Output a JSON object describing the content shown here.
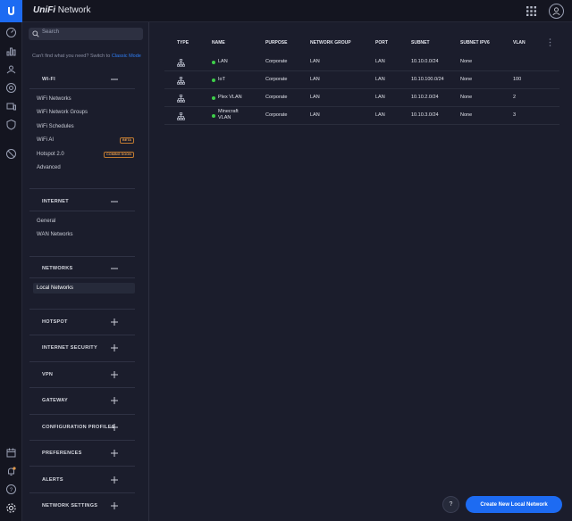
{
  "app": {
    "brand": "UniFi",
    "product": "Network"
  },
  "search": {
    "placeholder": "Search"
  },
  "hint": {
    "text": "Can't find what you need? Switch to",
    "link": "Classic Mode"
  },
  "sections": {
    "wifi": {
      "title": "WI-FI",
      "expanded": true,
      "items": [
        "WiFi Networks",
        "WiFi Network Groups",
        "WiFi Schedules",
        "WiFi AI",
        "Hotspot 2.0",
        "Advanced"
      ],
      "badges": {
        "wifi_ai": "BETA",
        "hotspot": "COMING SOON"
      }
    },
    "internet": {
      "title": "INTERNET",
      "expanded": true,
      "items": [
        "General",
        "WAN Networks"
      ]
    },
    "networks": {
      "title": "NETWORKS",
      "expanded": true,
      "items": [
        "Local Networks"
      ],
      "active": "Local Networks"
    },
    "hotspot": {
      "title": "HOTSPOT"
    },
    "internet_security": {
      "title": "INTERNET SECURITY"
    },
    "vpn": {
      "title": "VPN"
    },
    "gateway": {
      "title": "GATEWAY"
    },
    "config_profiles": {
      "title": "CONFIGURATION PROFILES"
    },
    "preferences": {
      "title": "PREFERENCES"
    },
    "alerts": {
      "title": "ALERTS"
    },
    "network_settings": {
      "title": "NETWORK SETTINGS"
    }
  },
  "table": {
    "columns": [
      "TYPE",
      "NAME",
      "PURPOSE",
      "NETWORK GROUP",
      "PORT",
      "SUBNET",
      "SUBNET IPV6",
      "VLAN"
    ],
    "rows": [
      {
        "name": "LAN",
        "name2": "",
        "purpose": "Corporate",
        "group": "LAN",
        "port": "LAN",
        "subnet": "10.10.0.0/24",
        "ipv6": "None",
        "vlan": ""
      },
      {
        "name": "IoT",
        "name2": "",
        "purpose": "Corporate",
        "group": "LAN",
        "port": "LAN",
        "subnet": "10.10.100.0/24",
        "ipv6": "None",
        "vlan": "100"
      },
      {
        "name": "Plex VLAN",
        "name2": "",
        "purpose": "Corporate",
        "group": "LAN",
        "port": "LAN",
        "subnet": "10.10.2.0/24",
        "ipv6": "None",
        "vlan": "2"
      },
      {
        "name": "Minecraft",
        "name2": "VLAN",
        "purpose": "Corporate",
        "group": "LAN",
        "port": "LAN",
        "subnet": "10.10.3.0/24",
        "ipv6": "None",
        "vlan": "3"
      }
    ]
  },
  "buttons": {
    "help": "?",
    "create": "Create New Local Network"
  },
  "colors": {
    "accent": "#1d6bf2",
    "status_ok": "#3ecf4a",
    "badge": "#e0994c"
  },
  "icons": {
    "rail": [
      "dashboard-icon",
      "statistics-icon",
      "map-icon",
      "devices-icon",
      "clients-icon",
      "insights-icon",
      "threat-icon"
    ],
    "rail_bottom": [
      "events-icon",
      "notifications-icon",
      "help-icon",
      "settings-icon"
    ],
    "row": "network-topology-icon"
  }
}
